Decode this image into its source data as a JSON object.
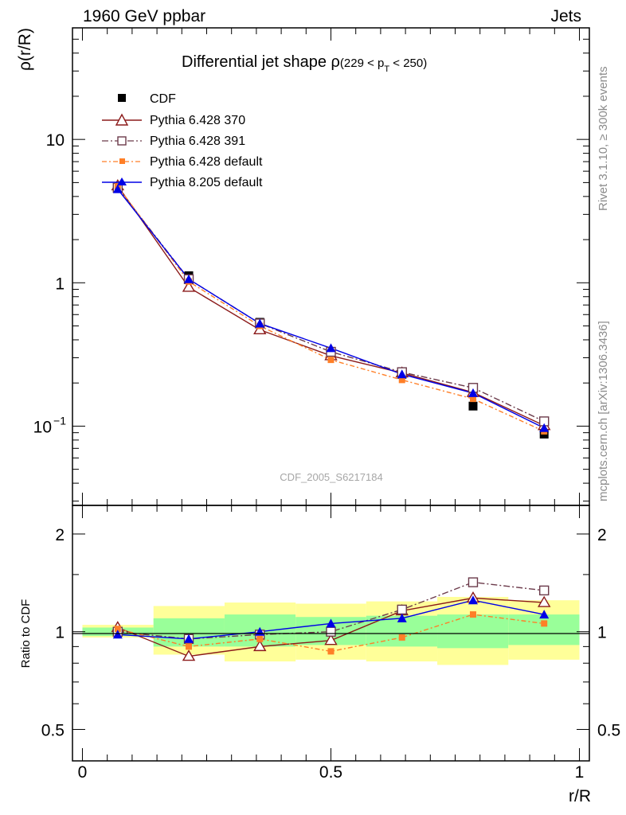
{
  "header": {
    "left": "1960 GeV ppbar",
    "right": "Jets"
  },
  "side": {
    "rivet": "Rivet 3.1.10, ≥ 300k events",
    "mcplots": "mcplots.cern.ch [arXiv:1306.3436]"
  },
  "watermark": "CDF_2005_S6217184",
  "title": {
    "main": "Differential jet shape ρ",
    "range_open": "(229 < p",
    "range_sub": "T",
    "range_close": " < 250)"
  },
  "ylabel_main": "ρ(r/R)",
  "ylabel_ratio": "Ratio to CDF",
  "xlabel": "r/R",
  "colors": {
    "CDF": "#000000",
    "P370": "#8b1a1a",
    "P391": "#6b3a4a",
    "Pdef": "#ff7f27",
    "P8": "#0000e6",
    "band_inner": "#99ff99",
    "band_outer": "#ffff99"
  },
  "chart_data": [
    {
      "type": "line",
      "scale": "log",
      "ylim": [
        0.028,
        60
      ],
      "xlim": [
        -0.02,
        1.02
      ],
      "yticks": [
        {
          "v": 10,
          "label": "10"
        },
        {
          "v": 1,
          "label": "1"
        },
        {
          "v": 0.1,
          "label": "10",
          "sup": "−1"
        }
      ],
      "x": [
        0.071,
        0.214,
        0.357,
        0.5,
        0.643,
        0.786,
        0.929
      ],
      "series": [
        {
          "name": "CDF",
          "style": "data",
          "values": [
            4.6,
            1.12,
            0.53,
            0.33,
            0.23,
            0.138,
            0.088
          ]
        },
        {
          "name": "Pythia 6.428 370",
          "style": "p370",
          "values": [
            4.75,
            0.93,
            0.47,
            0.31,
            0.235,
            0.172,
            0.101
          ]
        },
        {
          "name": "Pythia 6.428 391",
          "style": "p391",
          "values": [
            4.6,
            1.06,
            0.52,
            0.33,
            0.238,
            0.185,
            0.108
          ]
        },
        {
          "name": "Pythia 6.428 default",
          "style": "pdef",
          "values": [
            4.7,
            1.02,
            0.5,
            0.29,
            0.21,
            0.155,
            0.092
          ]
        },
        {
          "name": "Pythia 8.205 default",
          "style": "p8",
          "values": [
            4.5,
            1.06,
            0.52,
            0.35,
            0.23,
            0.17,
            0.097
          ]
        }
      ]
    },
    {
      "type": "line",
      "scale": "log",
      "ylim": [
        0.4,
        2.45
      ],
      "xlim": [
        -0.02,
        1.02
      ],
      "yticks": [
        {
          "v": 2,
          "label": "2"
        },
        {
          "v": 1,
          "label": "1"
        },
        {
          "v": 0.5,
          "label": "0.5"
        }
      ],
      "xticks": [
        {
          "v": 0,
          "label": "0"
        },
        {
          "v": 0.5,
          "label": "0.5"
        },
        {
          "v": 1,
          "label": "1"
        }
      ],
      "bins": [
        0,
        0.143,
        0.286,
        0.429,
        0.571,
        0.714,
        0.857,
        1.0
      ],
      "band_inner": [
        [
          0.97,
          1.03
        ],
        [
          0.9,
          1.1
        ],
        [
          0.9,
          1.13
        ],
        [
          0.91,
          1.11
        ],
        [
          0.9,
          1.12
        ],
        [
          0.89,
          1.13
        ],
        [
          0.91,
          1.13
        ]
      ],
      "band_outer": [
        [
          0.96,
          1.05
        ],
        [
          0.85,
          1.2
        ],
        [
          0.81,
          1.23
        ],
        [
          0.82,
          1.22
        ],
        [
          0.81,
          1.24
        ],
        [
          0.79,
          1.28
        ],
        [
          0.82,
          1.25
        ]
      ],
      "x": [
        0.071,
        0.214,
        0.357,
        0.5,
        0.643,
        0.786,
        0.929
      ],
      "series": [
        {
          "name": "Pythia 6.428 370",
          "style": "p370",
          "values": [
            1.03,
            0.84,
            0.9,
            0.94,
            1.16,
            1.27,
            1.23
          ]
        },
        {
          "name": "Pythia 6.428 391",
          "style": "p391",
          "values": [
            1.0,
            0.95,
            0.98,
            1.0,
            1.17,
            1.42,
            1.34
          ]
        },
        {
          "name": "Pythia 6.428 default",
          "style": "pdef",
          "values": [
            1.02,
            0.9,
            0.95,
            0.87,
            0.96,
            1.13,
            1.06
          ]
        },
        {
          "name": "Pythia 8.205 default",
          "style": "p8",
          "values": [
            0.98,
            0.95,
            1.0,
            1.06,
            1.1,
            1.25,
            1.13
          ]
        }
      ]
    }
  ]
}
